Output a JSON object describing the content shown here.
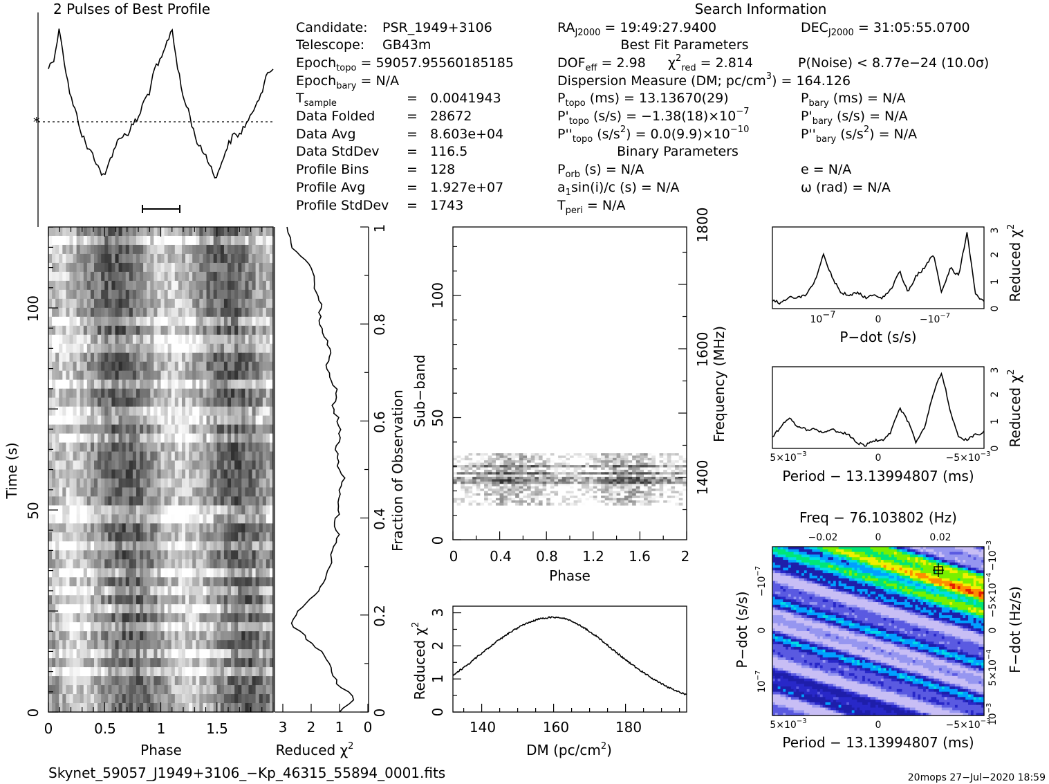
{
  "header": {
    "profile_title": "2 Pulses of Best Profile",
    "search_title": "Search Information"
  },
  "info": {
    "candidate_label": "Candidate:",
    "candidate": "PSR_1949+3106",
    "telescope_label": "Telescope:",
    "telescope": "GB43m",
    "epoch_topo_label": "Epoch",
    "epoch_topo_sub": "topo",
    "epoch_topo": "= 59057.95560185185",
    "epoch_bary_label": "Epoch",
    "epoch_bary_sub": "bary",
    "epoch_bary": "= N/A",
    "tsample_label": "T",
    "tsample_sub": "sample",
    "tsample": "0.0041943",
    "folded_label": "Data Folded",
    "folded": "28672",
    "avg_label": "Data Avg",
    "avg": "8.603e+04",
    "std_label": "Data StdDev",
    "std": "116.5",
    "bins_label": "Profile Bins",
    "bins": "128",
    "pavg_label": "Profile Avg",
    "pavg": "1.927e+07",
    "pstd_label": "Profile StdDev",
    "pstd": "1743",
    "eq": "="
  },
  "search": {
    "ra_label": "RA",
    "ra_sub": "J2000",
    "ra": "= 19:49:27.9400",
    "dec_label": "DEC",
    "dec_sub": "J2000",
    "dec": "= 31:05:55.0700",
    "best_fit_heading": "Best Fit Parameters",
    "dof_label": "DOF",
    "dof_sub": "eff",
    "dof": "= 2.98",
    "chi_label": "χ",
    "chi_sup": "2",
    "chi_sub": "red",
    "chi": "= 2.814",
    "pnoise": "P(Noise) < 8.77e−24   (10.0σ)",
    "dm_text": "Dispersion Measure (DM; pc/cm",
    "dm_sup": "3",
    "dm_val": ") = 164.126",
    "ptopo_label": "P",
    "ptopo_sub": "topo",
    "ptopo": "(ms) =  13.13670(29)",
    "pbary_label": "P",
    "pbary_sub": "bary",
    "pbary": "(ms) = N/A",
    "pdtopo_label": "P'",
    "pdtopo_sub": "topo",
    "pdtopo": "(s/s) = −1.38(18)×10",
    "pdtopo_exp": "−7",
    "pdbary_label": "P'",
    "pdbary_sub": "bary",
    "pdbary": "(s/s) = N/A",
    "pddtopo_label": "P''",
    "pddtopo_sub": "topo",
    "pddtopo": "(s/s",
    "pddtopo_sq": "2",
    "pddtopo_val": ") = 0.0(9.9)×10",
    "pddtopo_exp": "−10",
    "pddbary_label": "P''",
    "pddbary_sub": "bary",
    "pddbary": "(s/s",
    "pddbary_sq": "2",
    "pddbary_val": ") = N/A",
    "binary_heading": "Binary Parameters",
    "porb_label": "P",
    "porb_sub": "orb",
    "porb": "(s) = N/A",
    "e": "e = N/A",
    "a1_label": "a",
    "a1_sub": "1",
    "a1": "sin(i)/c (s) = N/A",
    "omega": "ω (rad) = N/A",
    "tperi_label": "T",
    "tperi_sub": "peri",
    "tperi": "= N/A"
  },
  "footer": {
    "filename": "Skynet_59057_J1949+3106_−Kp_46315_55894_0001.fits",
    "stamp": "20mops 27−Jul−2020 18:59"
  },
  "labels": {
    "phase": "Phase",
    "time": "Time (s)",
    "reduced_chi": "Reduced χ",
    "sq": "2",
    "fraction": "Fraction of Observation",
    "subband": "Sub−band",
    "frequency": "Frequency (MHz)",
    "dm_axis": "DM (pc/cm",
    "dm_axis_close": ")",
    "pdot_axis": "P−dot (s/s)",
    "period_axis": "Period − 13.13994807 (ms)",
    "freq_axis": "Freq − 76.103802 (Hz)",
    "pdot_y": "P−dot (s/s)",
    "fdot_y": "F−dot (Hz/s)"
  },
  "ticks": {
    "time_y": [
      "0",
      "50",
      "100"
    ],
    "phase_x": [
      "0",
      "0.5",
      "1",
      "1.5"
    ],
    "chi_x": [
      "3",
      "2",
      "1",
      "0"
    ],
    "fraction_y": [
      "0",
      "0.2",
      "0.4",
      "0.6",
      "0.8",
      "1"
    ],
    "subband_y": [
      "0",
      "50",
      "100"
    ],
    "subband_phase_x": [
      "0",
      "0.4",
      "0.8",
      "1.2",
      "1.6",
      "2"
    ],
    "freq_y": [
      "1400",
      "1600",
      "1800"
    ],
    "dm_x": [
      "140",
      "160",
      "180"
    ],
    "dm_chi_y": [
      "0",
      "1",
      "2",
      "3"
    ],
    "pdot_x": [
      "10",
      "0",
      "−10"
    ],
    "pdot_x_exp": "−7",
    "small_chi_y": [
      "0",
      "1",
      "2",
      "3"
    ],
    "period_x": [
      "5×10",
      "0",
      "−5×10"
    ],
    "period_x_exp": "−3",
    "freq_x": [
      "−0.02",
      "0",
      "0.02"
    ],
    "pp_pdot_y": [
      "10",
      "0",
      "−10"
    ],
    "pp_pdot_exp": "−7",
    "fdot_y": [
      "10",
      "5×10",
      "0",
      "−5×10",
      "−10"
    ],
    "fdot_exp": [
      "−3",
      "−4",
      "",
      "−4",
      "−3"
    ]
  },
  "chart_data": [
    {
      "type": "line",
      "name": "profile",
      "title": "2 Pulses of Best Profile",
      "x": [
        0.0,
        0.05,
        0.1,
        0.15,
        0.2,
        0.25,
        0.3,
        0.35,
        0.4,
        0.45,
        0.5,
        0.55,
        0.6,
        0.65,
        0.7,
        0.75,
        0.8,
        0.85,
        0.9,
        0.95,
        1.0,
        1.05,
        1.1,
        1.15,
        1.2,
        1.25,
        1.3,
        1.35,
        1.4,
        1.45,
        1.5,
        1.55,
        1.6,
        1.65,
        1.7,
        1.75,
        1.8,
        1.85,
        1.9,
        1.95,
        2.0
      ],
      "values": [
        0.76,
        0.82,
        1.0,
        0.76,
        0.58,
        0.48,
        0.36,
        0.28,
        0.24,
        0.16,
        0.1,
        0.22,
        0.3,
        0.36,
        0.36,
        0.42,
        0.46,
        0.56,
        0.62,
        0.76,
        0.8,
        0.9,
        1.0,
        0.76,
        0.58,
        0.5,
        0.36,
        0.28,
        0.24,
        0.16,
        0.1,
        0.22,
        0.3,
        0.36,
        0.36,
        0.42,
        0.46,
        0.56,
        0.62,
        0.72,
        0.76
      ]
    },
    {
      "type": "heatmap",
      "name": "time-vs-phase",
      "xlabel": "Phase",
      "ylabel": "Time (s)",
      "xlim": [
        0,
        2
      ],
      "ylim": [
        0,
        120
      ]
    },
    {
      "type": "line",
      "name": "reduced-chi-vs-time",
      "xlabel": "Reduced χ2",
      "x": [
        0.0,
        0.03,
        0.06,
        0.09,
        0.12,
        0.15,
        0.18,
        0.21,
        0.24,
        0.27,
        0.3,
        0.33,
        0.36,
        0.39,
        0.42,
        0.45,
        0.48,
        0.51,
        0.54,
        0.57,
        0.6,
        0.63,
        0.66,
        0.69,
        0.72,
        0.75,
        0.78,
        0.81,
        0.84,
        0.87,
        0.9,
        0.93,
        0.96,
        1.0
      ],
      "values": [
        1.0,
        0.5,
        1.2,
        1.3,
        1.6,
        2.2,
        2.8,
        2.6,
        1.9,
        1.6,
        1.4,
        1.3,
        1.1,
        1.2,
        1.0,
        1.1,
        0.9,
        1.1,
        1.2,
        1.0,
        1.1,
        1.3,
        1.1,
        1.4,
        1.5,
        1.4,
        1.6,
        1.8,
        1.7,
        1.9,
        1.9,
        2.3,
        2.8,
        3.0
      ]
    },
    {
      "type": "heatmap",
      "name": "subband-vs-phase",
      "xlabel": "Phase",
      "ylabel": "Sub−band",
      "xlim": [
        0,
        2
      ],
      "ylim": [
        0,
        128
      ]
    },
    {
      "type": "line",
      "name": "reduced-chi-vs-dm",
      "xlabel": "DM (pc/cm3)",
      "ylabel": "Reduced χ2",
      "xlim": [
        132,
        197
      ],
      "ylim": [
        0,
        3.2
      ],
      "x": [
        132,
        136,
        140,
        144,
        148,
        152,
        156,
        160,
        164,
        168,
        172,
        176,
        180,
        184,
        188,
        192,
        197
      ],
      "values": [
        1.12,
        1.42,
        1.78,
        2.12,
        2.42,
        2.66,
        2.82,
        2.87,
        2.8,
        2.58,
        2.28,
        1.93,
        1.58,
        1.26,
        0.98,
        0.74,
        0.52
      ]
    },
    {
      "type": "line",
      "name": "reduced-chi-vs-pdot",
      "xlabel": "P−dot (s/s)",
      "ylabel": "Reduced χ2",
      "ylim": [
        0,
        3
      ],
      "x": [
        0,
        0.04,
        0.08,
        0.12,
        0.16,
        0.2,
        0.24,
        0.28,
        0.32,
        0.36,
        0.4,
        0.44,
        0.48,
        0.52,
        0.56,
        0.6,
        0.64,
        0.68,
        0.72,
        0.76,
        0.8,
        0.84,
        0.88,
        0.92,
        0.96,
        1.0
      ],
      "values": [
        0.3,
        0.2,
        0.4,
        0.4,
        0.5,
        1.0,
        2.0,
        1.2,
        0.6,
        0.5,
        0.6,
        0.4,
        0.5,
        0.4,
        0.7,
        1.4,
        0.6,
        1.2,
        1.5,
        2.0,
        0.6,
        1.5,
        1.2,
        2.8,
        0.5,
        0.3
      ]
    },
    {
      "type": "line",
      "name": "reduced-chi-vs-period",
      "xlabel": "Period − 13.13994807 (ms)",
      "ylabel": "Reduced χ2",
      "ylim": [
        0,
        3
      ],
      "x": [
        0,
        0.04,
        0.08,
        0.12,
        0.16,
        0.2,
        0.24,
        0.28,
        0.32,
        0.36,
        0.4,
        0.44,
        0.48,
        0.52,
        0.56,
        0.6,
        0.64,
        0.68,
        0.72,
        0.76,
        0.8,
        0.84,
        0.88,
        0.92,
        0.96,
        1.0
      ],
      "values": [
        0.4,
        0.8,
        1.1,
        0.8,
        0.7,
        0.7,
        0.6,
        0.7,
        0.6,
        0.5,
        0.2,
        0.1,
        0.3,
        0.3,
        0.6,
        1.5,
        1.0,
        0.2,
        0.8,
        2.0,
        2.8,
        1.4,
        0.4,
        0.3,
        0.5,
        0.6
      ]
    },
    {
      "type": "heatmap",
      "name": "pdot-vs-period",
      "xlabel": "Period − 13.13994807 (ms)",
      "ylabel": "P−dot (s/s)"
    }
  ]
}
